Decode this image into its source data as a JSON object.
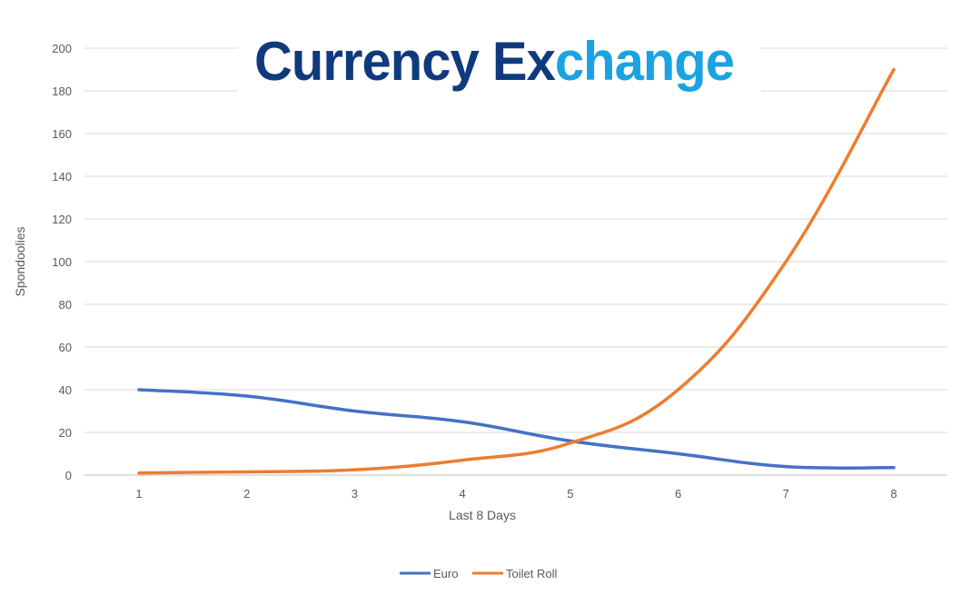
{
  "logo": {
    "word1": "Currency",
    "word2_a": "Ex",
    "word2_b": "change",
    "color_dark": "#0f3a7d",
    "color_light": "#1aa3e0"
  },
  "chart_data": {
    "type": "line",
    "x": [
      1,
      2,
      3,
      4,
      5,
      6,
      7,
      8
    ],
    "series": [
      {
        "name": "Euro",
        "values": [
          40,
          37,
          30,
          25,
          16,
          10,
          4,
          3.5
        ],
        "color": "#4472c4"
      },
      {
        "name": "Toilet Roll",
        "values": [
          1,
          1.5,
          2.5,
          7,
          15,
          40,
          100,
          190
        ],
        "color": "#ed7d31"
      }
    ],
    "xlabel": "Last 8 Days",
    "ylabel": "Spondoolies",
    "ylim": [
      0,
      200
    ],
    "yticks": [
      0,
      20,
      40,
      60,
      80,
      100,
      120,
      140,
      160,
      180,
      200
    ],
    "grid": true,
    "legend": "bottom"
  }
}
